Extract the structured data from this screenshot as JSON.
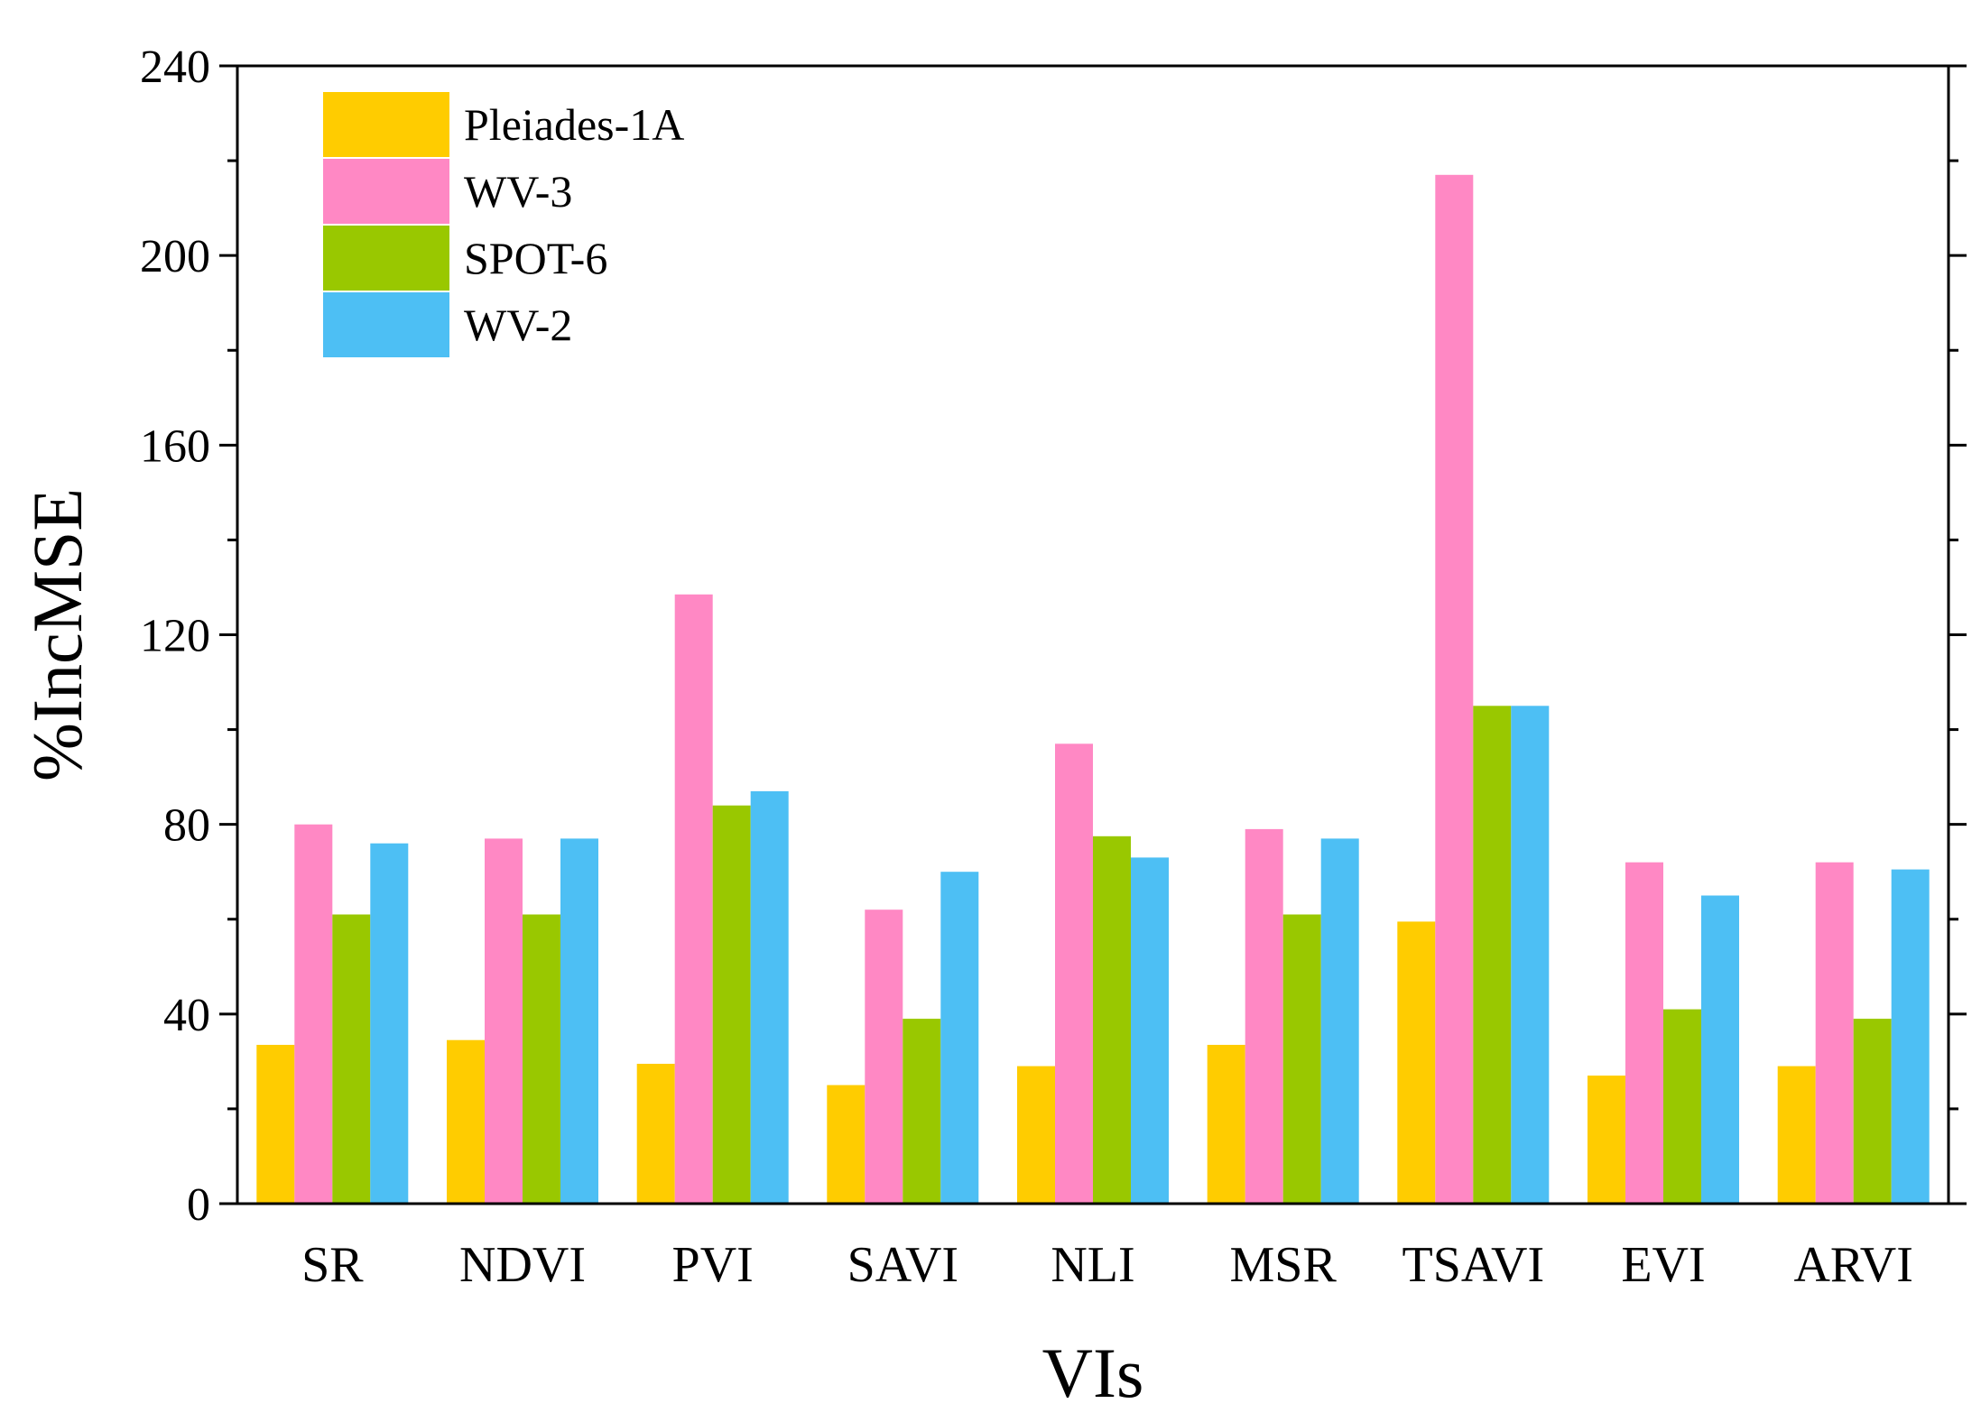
{
  "chart_data": {
    "type": "bar",
    "title": "",
    "xlabel": "VIs",
    "ylabel": "%IncMSE",
    "ylim": [
      0,
      240
    ],
    "yticks": [
      "0",
      "40",
      "80",
      "120",
      "160",
      "200",
      "240"
    ],
    "categories": [
      "SR",
      "NDVI",
      "PVI",
      "SAVI",
      "NLI",
      "MSR",
      "TSAVI",
      "EVI",
      "ARVI"
    ],
    "legend_position": "top-left",
    "grid": false,
    "series": [
      {
        "name": "Pleiades-1A",
        "color": "#FFCC00",
        "values": [
          33.5,
          34.5,
          29.5,
          25,
          29,
          33.5,
          59.5,
          27,
          29
        ]
      },
      {
        "name": "WV-3",
        "color": "#FF88C4",
        "values": [
          80,
          77,
          128.5,
          62,
          97,
          79,
          217,
          72,
          72
        ]
      },
      {
        "name": "SPOT-6",
        "color": "#99C800",
        "values": [
          61,
          61,
          84,
          39,
          77.5,
          61,
          105,
          41,
          39
        ]
      },
      {
        "name": "WV-2",
        "color": "#4DBFF4",
        "values": [
          76,
          77,
          87,
          70,
          73,
          77,
          105,
          65,
          70.5
        ]
      }
    ]
  }
}
